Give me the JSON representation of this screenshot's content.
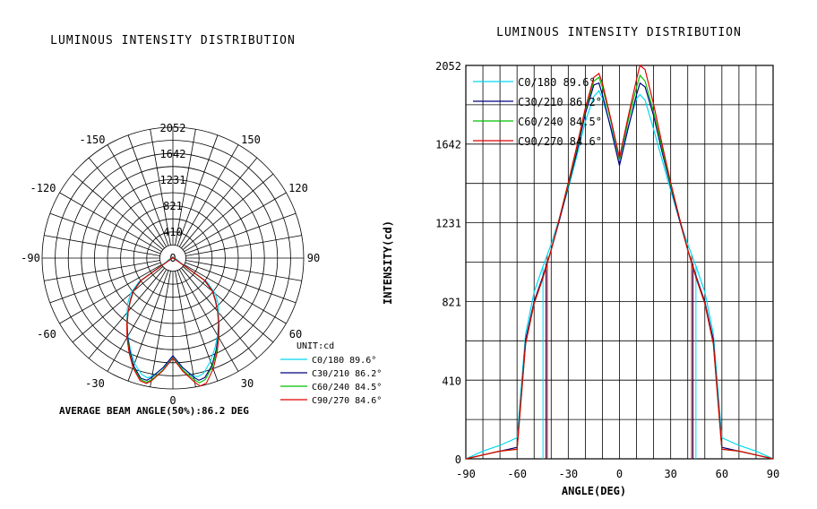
{
  "chart_data": [
    {
      "type": "polar",
      "title": "LUMINOUS INTENSITY DISTRIBUTION",
      "radial_ticks": [
        2052,
        1642,
        1231,
        821,
        410,
        0
      ],
      "angle_labels": [
        "-150",
        "150",
        "-120",
        "120",
        "-90",
        "90",
        "-60",
        "60",
        "-30",
        "30",
        "0"
      ],
      "unit_label": "UNIT:cd",
      "legend": [
        "C0/180 89.6°",
        "C30/210 86.2°",
        "C60/240 84.5°",
        "C90/270 84.6°"
      ],
      "footer": "AVERAGE BEAM ANGLE(50%):86.2 DEG",
      "rmax": 2052,
      "angle_step_deg": 10,
      "circle_step": 205.2
    },
    {
      "type": "line",
      "title": "LUMINOUS INTENSITY DISTRIBUTION",
      "xlabel": "ANGLE(DEG)",
      "ylabel": "INTENSITY(cd)",
      "xlim": [
        -90,
        90
      ],
      "ylim": [
        0,
        2052
      ],
      "x_ticks": [
        -90,
        -60,
        -30,
        0,
        30,
        60,
        90
      ],
      "y_ticks": [
        0,
        410,
        821,
        1231,
        1642,
        2052
      ],
      "x": [
        -90,
        -80,
        -70,
        -60,
        -55,
        -50,
        -45,
        -40,
        -35,
        -30,
        -25,
        -20,
        -15,
        -12,
        -10,
        -5,
        0,
        5,
        10,
        12,
        15,
        20,
        25,
        30,
        35,
        40,
        45,
        50,
        55,
        60,
        70,
        80,
        90
      ],
      "series": [
        {
          "name": "C0/180 89.6°",
          "color": "#00d8f0",
          "values": [
            0,
            40,
            70,
            110,
            650,
            870,
            1000,
            1120,
            1260,
            1410,
            1580,
            1760,
            1890,
            1920,
            1880,
            1730,
            1560,
            1730,
            1880,
            1900,
            1870,
            1720,
            1560,
            1400,
            1250,
            1120,
            1000,
            870,
            650,
            110,
            70,
            40,
            0
          ],
          "beam_edges": [
            -44.8,
            44.8
          ]
        },
        {
          "name": "C30/210 86.2°",
          "color": "#000080",
          "values": [
            0,
            20,
            40,
            60,
            620,
            820,
            950,
            1090,
            1250,
            1420,
            1600,
            1800,
            1950,
            1960,
            1900,
            1720,
            1530,
            1720,
            1900,
            1960,
            1940,
            1790,
            1600,
            1420,
            1250,
            1090,
            950,
            820,
            620,
            60,
            40,
            20,
            0
          ],
          "beam_edges": [
            -43.1,
            43.1
          ]
        },
        {
          "name": "C60/240 84.5°",
          "color": "#00c000",
          "values": [
            0,
            20,
            40,
            50,
            600,
            810,
            940,
            1090,
            1260,
            1430,
            1620,
            1820,
            1970,
            1990,
            1940,
            1760,
            1560,
            1760,
            1940,
            2000,
            1970,
            1810,
            1620,
            1430,
            1260,
            1090,
            940,
            810,
            600,
            50,
            40,
            20,
            0
          ],
          "beam_edges": [
            -42.3,
            42.3
          ]
        },
        {
          "name": "C90/270 84.6°",
          "color": "#e00000",
          "values": [
            0,
            20,
            40,
            50,
            600,
            810,
            940,
            1090,
            1260,
            1440,
            1630,
            1830,
            1990,
            2010,
            1960,
            1770,
            1570,
            1780,
            1980,
            2052,
            2030,
            1850,
            1640,
            1440,
            1260,
            1090,
            940,
            810,
            600,
            50,
            40,
            20,
            0
          ],
          "beam_edges": [
            -42.3,
            42.3
          ]
        }
      ]
    }
  ]
}
